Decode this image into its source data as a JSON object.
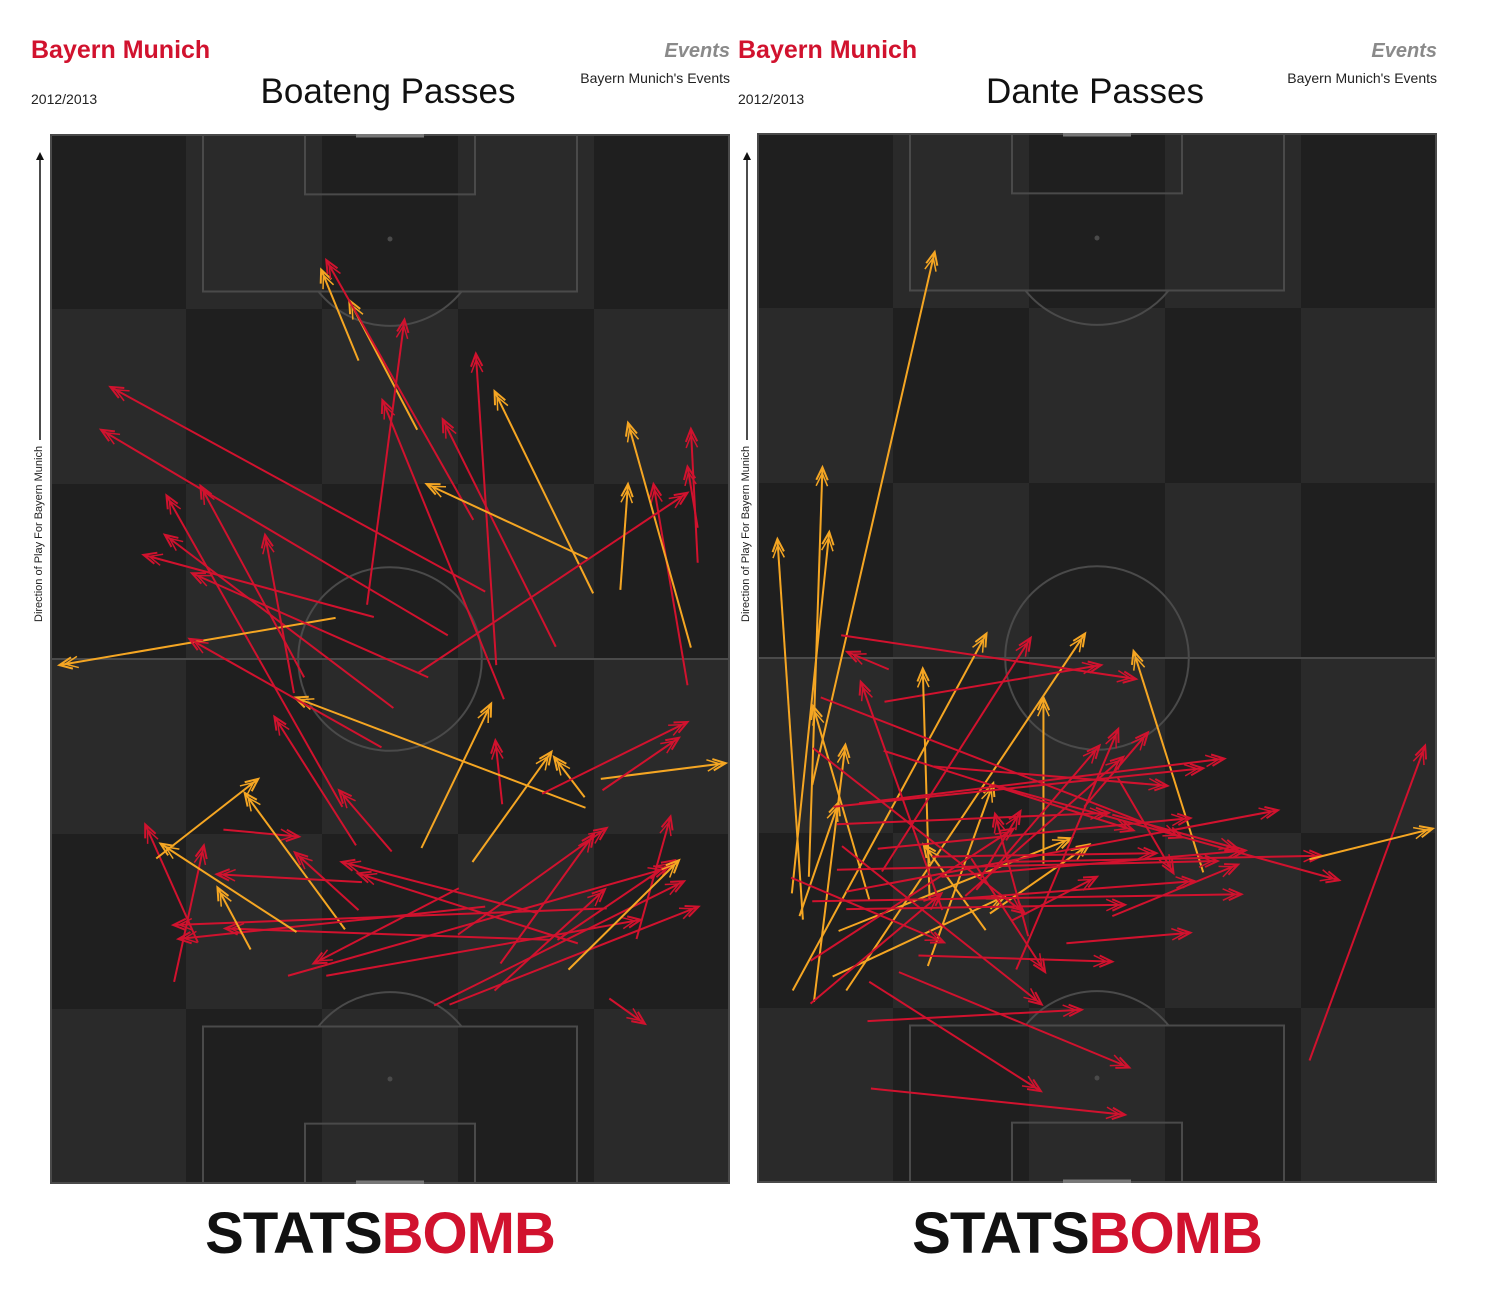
{
  "colors": {
    "pitch_dark": "#1f1f1f",
    "pitch_light": "#2a2a2a",
    "pitch_lines": "#4a4a4a",
    "red": "#d1122e",
    "orange": "#f5a623"
  },
  "brand": {
    "dark": "STATS",
    "red": "BOMB"
  },
  "panels": [
    {
      "team": "Bayern Munich",
      "season": "2012/2013",
      "title": "Boateng Passes",
      "events_label": "Events",
      "events_sub": "Bayern Munich's Events",
      "direction_label": "Direction of Play For Bayern Munich"
    },
    {
      "team": "Bayern Munich",
      "season": "2012/2013",
      "title": "Dante Passes",
      "events_label": "Events",
      "events_sub": "Bayern Munich's Events",
      "direction_label": "Direction of Play For Bayern Munich"
    }
  ],
  "chart_data": [
    {
      "type": "pass-map",
      "title": "Boateng Passes",
      "units": "pitch yards: x = width (0-80), y = length (0-120); attacking toward y=120",
      "passes": [
        {
          "sx": 51.2,
          "sy": 67.7,
          "ex": 7.1,
          "ey": 91.1,
          "color": "red"
        },
        {
          "sx": 46.8,
          "sy": 62.7,
          "ex": 6.0,
          "ey": 86.2,
          "color": "red"
        },
        {
          "sx": 38.1,
          "sy": 64.8,
          "ex": 11.0,
          "ey": 71.9,
          "color": "red"
        },
        {
          "sx": 40.4,
          "sy": 54.4,
          "ex": 13.5,
          "ey": 74.2,
          "color": "red"
        },
        {
          "sx": 34.4,
          "sy": 43.1,
          "ex": 13.7,
          "ey": 78.7,
          "color": "red"
        },
        {
          "sx": 33.6,
          "sy": 64.7,
          "ex": 1.1,
          "ey": 59.3,
          "color": "orange"
        },
        {
          "sx": 28.7,
          "sy": 56.1,
          "ex": 25.3,
          "ey": 74.2,
          "color": "red"
        },
        {
          "sx": 29.9,
          "sy": 57.9,
          "ex": 17.7,
          "ey": 79.8,
          "color": "red"
        },
        {
          "sx": 36.3,
          "sy": 94.1,
          "ex": 31.9,
          "ey": 104.5,
          "color": "orange"
        },
        {
          "sx": 43.2,
          "sy": 86.2,
          "ex": 35.2,
          "ey": 101.0,
          "color": "orange"
        },
        {
          "sx": 49.8,
          "sy": 75.9,
          "ex": 32.5,
          "ey": 105.6,
          "color": "red"
        },
        {
          "sx": 37.3,
          "sy": 66.2,
          "ex": 41.7,
          "ey": 98.8,
          "color": "red"
        },
        {
          "sx": 52.5,
          "sy": 59.3,
          "ex": 50.1,
          "ey": 94.9,
          "color": "red"
        },
        {
          "sx": 53.4,
          "sy": 55.4,
          "ex": 39.1,
          "ey": 89.6,
          "color": "red"
        },
        {
          "sx": 59.5,
          "sy": 61.4,
          "ex": 46.2,
          "ey": 87.4,
          "color": "red"
        },
        {
          "sx": 63.9,
          "sy": 67.5,
          "ex": 52.3,
          "ey": 90.6,
          "color": "orange"
        },
        {
          "sx": 63.4,
          "sy": 71.4,
          "ex": 44.3,
          "ey": 80.0,
          "color": "orange"
        },
        {
          "sx": 75.0,
          "sy": 57.0,
          "ex": 71.0,
          "ey": 80.0,
          "color": "red"
        },
        {
          "sx": 75.4,
          "sy": 61.3,
          "ex": 68.0,
          "ey": 87.0,
          "color": "orange"
        },
        {
          "sx": 76.2,
          "sy": 75.0,
          "ex": 75.0,
          "ey": 82.0,
          "color": "red"
        },
        {
          "sx": 76.2,
          "sy": 71.0,
          "ex": 75.4,
          "ey": 86.3,
          "color": "red"
        },
        {
          "sx": 43.3,
          "sy": 58.4,
          "ex": 75.0,
          "ey": 79.0,
          "color": "red"
        },
        {
          "sx": 67.1,
          "sy": 67.9,
          "ex": 68.0,
          "ey": 80.0,
          "color": "orange"
        },
        {
          "sx": 53.2,
          "sy": 43.4,
          "ex": 52.4,
          "ey": 50.7,
          "color": "red"
        },
        {
          "sx": 36.0,
          "sy": 38.7,
          "ex": 26.4,
          "ey": 53.4,
          "color": "red"
        },
        {
          "sx": 40.2,
          "sy": 38.0,
          "ex": 34.0,
          "ey": 45.0,
          "color": "red"
        },
        {
          "sx": 20.4,
          "sy": 40.5,
          "ex": 29.3,
          "ey": 39.7,
          "color": "red"
        },
        {
          "sx": 44.5,
          "sy": 57.9,
          "ex": 16.7,
          "ey": 69.8,
          "color": "red"
        },
        {
          "sx": 63.0,
          "sy": 43.0,
          "ex": 28.8,
          "ey": 55.6,
          "color": "orange"
        },
        {
          "sx": 39.0,
          "sy": 49.9,
          "ex": 16.4,
          "ey": 62.3,
          "color": "red"
        },
        {
          "sx": 43.7,
          "sy": 38.4,
          "ex": 51.9,
          "ey": 54.9,
          "color": "orange"
        },
        {
          "sx": 49.7,
          "sy": 36.8,
          "ex": 59.0,
          "ey": 49.4,
          "color": "orange"
        },
        {
          "sx": 34.7,
          "sy": 29.1,
          "ex": 22.9,
          "ey": 44.7,
          "color": "orange"
        },
        {
          "sx": 14.6,
          "sy": 23.1,
          "ex": 18.1,
          "ey": 38.7,
          "color": "red"
        },
        {
          "sx": 36.7,
          "sy": 34.5,
          "ex": 19.6,
          "ey": 35.4,
          "color": "red"
        },
        {
          "sx": 28.0,
          "sy": 23.8,
          "ex": 72.6,
          "ey": 36.1,
          "color": "red"
        },
        {
          "sx": 32.5,
          "sy": 23.8,
          "ex": 69.5,
          "ey": 30.2,
          "color": "red"
        },
        {
          "sx": 45.2,
          "sy": 20.4,
          "ex": 74.6,
          "ey": 34.6,
          "color": "red"
        },
        {
          "sx": 52.3,
          "sy": 22.1,
          "ex": 65.3,
          "ey": 33.7,
          "color": "red"
        },
        {
          "sx": 47.0,
          "sy": 20.5,
          "ex": 76.3,
          "ey": 31.7,
          "color": "red"
        },
        {
          "sx": 59.7,
          "sy": 27.9,
          "ex": 73.5,
          "ey": 37.0,
          "color": "red"
        },
        {
          "sx": 69.0,
          "sy": 28.0,
          "ex": 73.0,
          "ey": 42.0,
          "color": "red"
        },
        {
          "sx": 57.2,
          "sy": 31.0,
          "ex": 34.3,
          "ey": 36.8,
          "color": "red"
        },
        {
          "sx": 62.1,
          "sy": 27.5,
          "ex": 36.2,
          "ey": 35.5,
          "color": "red"
        },
        {
          "sx": 58.9,
          "sy": 27.9,
          "ex": 20.6,
          "ey": 29.2,
          "color": "red"
        },
        {
          "sx": 65.5,
          "sy": 31.5,
          "ex": 14.5,
          "ey": 29.6,
          "color": "red"
        },
        {
          "sx": 36.3,
          "sy": 31.3,
          "ex": 28.8,
          "ey": 37.9,
          "color": "red"
        },
        {
          "sx": 51.2,
          "sy": 31.7,
          "ex": 15.1,
          "ey": 28.0,
          "color": "red"
        },
        {
          "sx": 23.6,
          "sy": 26.8,
          "ex": 19.7,
          "ey": 33.9,
          "color": "orange"
        },
        {
          "sx": 29.0,
          "sy": 28.8,
          "ex": 13.0,
          "ey": 38.9,
          "color": "orange"
        },
        {
          "sx": 48.1,
          "sy": 33.8,
          "ex": 31.0,
          "ey": 25.2,
          "color": "red"
        },
        {
          "sx": 53.0,
          "sy": 25.2,
          "ex": 64.0,
          "ey": 40.0,
          "color": "red"
        },
        {
          "sx": 48.0,
          "sy": 28.5,
          "ex": 65.5,
          "ey": 40.7,
          "color": "red"
        },
        {
          "sx": 62.9,
          "sy": 44.2,
          "ex": 59.3,
          "ey": 48.8,
          "color": "orange"
        },
        {
          "sx": 64.8,
          "sy": 46.3,
          "ex": 79.5,
          "ey": 48.1,
          "color": "orange"
        },
        {
          "sx": 57.9,
          "sy": 44.6,
          "ex": 75.0,
          "ey": 52.8,
          "color": "red"
        },
        {
          "sx": 17.4,
          "sy": 27.6,
          "ex": 11.2,
          "ey": 41.1,
          "color": "red"
        },
        {
          "sx": 65.8,
          "sy": 21.2,
          "ex": 70.0,
          "ey": 18.3,
          "color": "red"
        },
        {
          "sx": 12.5,
          "sy": 37.2,
          "ex": 24.5,
          "ey": 46.3,
          "color": "orange"
        },
        {
          "sx": 61.0,
          "sy": 24.5,
          "ex": 74.0,
          "ey": 37.0,
          "color": "orange"
        },
        {
          "sx": 65.0,
          "sy": 45.0,
          "ex": 74.0,
          "ey": 51.0,
          "color": "red"
        }
      ]
    },
    {
      "type": "pass-map",
      "title": "Dante Passes",
      "units": "pitch yards: x = width (0-80), y = length (0-120); attacking toward y=120",
      "passes": [
        {
          "sx": 6.5,
          "sy": 45.5,
          "ex": 20.9,
          "ey": 106.4,
          "color": "orange"
        },
        {
          "sx": 6.1,
          "sy": 35.0,
          "ex": 7.7,
          "ey": 81.8,
          "color": "orange"
        },
        {
          "sx": 4.1,
          "sy": 33.1,
          "ex": 8.5,
          "ey": 74.4,
          "color": "orange"
        },
        {
          "sx": 5.4,
          "sy": 30.1,
          "ex": 2.4,
          "ey": 73.6,
          "color": "orange"
        },
        {
          "sx": 6.7,
          "sy": 20.7,
          "ex": 10.4,
          "ey": 50.1,
          "color": "orange"
        },
        {
          "sx": 5.0,
          "sy": 30.5,
          "ex": 9.6,
          "ey": 43.5,
          "color": "orange"
        },
        {
          "sx": 4.2,
          "sy": 22.0,
          "ex": 27.0,
          "ey": 62.8,
          "color": "orange"
        },
        {
          "sx": 10.5,
          "sy": 22.0,
          "ex": 38.6,
          "ey": 62.8,
          "color": "orange"
        },
        {
          "sx": 13.2,
          "sy": 32.4,
          "ex": 6.6,
          "ey": 54.5,
          "color": "orange"
        },
        {
          "sx": 9.6,
          "sy": 28.8,
          "ex": 37.0,
          "ey": 39.4,
          "color": "orange"
        },
        {
          "sx": 26.9,
          "sy": 28.9,
          "ex": 19.6,
          "ey": 38.7,
          "color": "orange"
        },
        {
          "sx": 30.5,
          "sy": 24.4,
          "ex": 42.5,
          "ey": 51.9,
          "color": "red"
        },
        {
          "sx": 9.9,
          "sy": 62.6,
          "ex": 44.6,
          "ey": 57.6,
          "color": "red"
        },
        {
          "sx": 15.0,
          "sy": 55.0,
          "ex": 40.5,
          "ey": 59.2,
          "color": "red"
        },
        {
          "sx": 15.5,
          "sy": 58.7,
          "ex": 10.6,
          "ey": 60.7,
          "color": "red"
        },
        {
          "sx": 20.3,
          "sy": 32.5,
          "ex": 19.5,
          "ey": 58.8,
          "color": "orange"
        },
        {
          "sx": 14.7,
          "sy": 35.6,
          "ex": 32.2,
          "ey": 62.3,
          "color": "red"
        },
        {
          "sx": 20.1,
          "sy": 24.8,
          "ex": 27.8,
          "ey": 45.7,
          "color": "orange"
        },
        {
          "sx": 27.4,
          "sy": 30.8,
          "ex": 39.1,
          "ey": 38.7,
          "color": "orange"
        },
        {
          "sx": 8.9,
          "sy": 23.6,
          "ex": 29.2,
          "ey": 32.8,
          "color": "orange"
        },
        {
          "sx": 33.7,
          "sy": 36.5,
          "ex": 33.7,
          "ey": 55.5,
          "color": "orange"
        },
        {
          "sx": 52.5,
          "sy": 35.5,
          "ex": 44.3,
          "ey": 60.8,
          "color": "orange"
        },
        {
          "sx": 24.5,
          "sy": 32.8,
          "ex": 43.1,
          "ey": 48.7,
          "color": "red"
        },
        {
          "sx": 14.2,
          "sy": 38.2,
          "ex": 51.0,
          "ey": 41.7,
          "color": "red"
        },
        {
          "sx": 7.5,
          "sy": 55.5,
          "ex": 50.0,
          "ey": 39.5,
          "color": "red"
        },
        {
          "sx": 14.9,
          "sy": 49.4,
          "ex": 44.3,
          "ey": 40.3,
          "color": "red"
        },
        {
          "sx": 27.8,
          "sy": 45.5,
          "ex": 68.5,
          "ey": 34.6,
          "color": "red"
        },
        {
          "sx": 9.0,
          "sy": 43.0,
          "ex": 52.5,
          "ey": 47.4,
          "color": "red"
        },
        {
          "sx": 20.8,
          "sy": 47.6,
          "ex": 48.3,
          "ey": 45.4,
          "color": "red"
        },
        {
          "sx": 42.4,
          "sy": 46.4,
          "ex": 49.0,
          "ey": 35.4,
          "color": "red"
        },
        {
          "sx": 10.5,
          "sy": 33.3,
          "ex": 61.3,
          "ey": 42.6,
          "color": "red"
        },
        {
          "sx": 20.6,
          "sy": 37.3,
          "ex": 47.0,
          "ey": 37.7,
          "color": "red"
        },
        {
          "sx": 41.8,
          "sy": 42.1,
          "ex": 56.6,
          "ey": 38.2,
          "color": "red"
        },
        {
          "sx": 9.4,
          "sy": 41.0,
          "ex": 41.4,
          "ey": 42.3,
          "color": "red"
        },
        {
          "sx": 29.4,
          "sy": 36.7,
          "ex": 66.5,
          "ey": 37.4,
          "color": "red"
        },
        {
          "sx": 21.7,
          "sy": 35.0,
          "ex": 57.5,
          "ey": 38.0,
          "color": "red"
        },
        {
          "sx": 9.4,
          "sy": 35.8,
          "ex": 54.2,
          "ey": 36.8,
          "color": "red"
        },
        {
          "sx": 10.5,
          "sy": 31.3,
          "ex": 43.3,
          "ey": 31.8,
          "color": "red"
        },
        {
          "sx": 6.5,
          "sy": 32.2,
          "ex": 57.0,
          "ey": 33.0,
          "color": "red"
        },
        {
          "sx": 24.0,
          "sy": 32.5,
          "ex": 51.5,
          "ey": 34.5,
          "color": "red"
        },
        {
          "sx": 6.6,
          "sy": 49.7,
          "ex": 31.5,
          "ey": 30.8,
          "color": "red"
        },
        {
          "sx": 4.0,
          "sy": 34.9,
          "ex": 22.0,
          "ey": 27.5,
          "color": "red"
        },
        {
          "sx": 19.0,
          "sy": 26.0,
          "ex": 41.8,
          "ey": 25.3,
          "color": "red"
        },
        {
          "sx": 10.0,
          "sy": 38.5,
          "ex": 33.5,
          "ey": 20.4,
          "color": "red"
        },
        {
          "sx": 16.7,
          "sy": 24.1,
          "ex": 43.8,
          "ey": 13.2,
          "color": "red"
        },
        {
          "sx": 13.2,
          "sy": 23.0,
          "ex": 33.4,
          "ey": 10.5,
          "color": "red"
        },
        {
          "sx": 13.4,
          "sy": 10.8,
          "ex": 43.3,
          "ey": 7.8,
          "color": "red"
        },
        {
          "sx": 25.2,
          "sy": 37.1,
          "ex": 33.9,
          "ey": 24.1,
          "color": "red"
        },
        {
          "sx": 6.3,
          "sy": 25.4,
          "ex": 30.2,
          "ey": 40.5,
          "color": "red"
        },
        {
          "sx": 36.4,
          "sy": 27.4,
          "ex": 51.0,
          "ey": 28.6,
          "color": "red"
        },
        {
          "sx": 41.8,
          "sy": 30.5,
          "ex": 56.6,
          "ey": 36.4,
          "color": "red"
        },
        {
          "sx": 6.3,
          "sy": 20.5,
          "ex": 21.7,
          "ey": 33.1,
          "color": "red"
        },
        {
          "sx": 26.2,
          "sy": 34.7,
          "ex": 31.0,
          "ey": 42.5,
          "color": "red"
        },
        {
          "sx": 21.8,
          "sy": 31.2,
          "ex": 12.2,
          "ey": 57.3,
          "color": "red"
        },
        {
          "sx": 31.9,
          "sy": 28.2,
          "ex": 28.0,
          "ey": 42.2,
          "color": "red"
        },
        {
          "sx": 30.0,
          "sy": 30.0,
          "ex": 40.0,
          "ey": 35.0,
          "color": "red"
        },
        {
          "sx": 13.0,
          "sy": 18.5,
          "ex": 38.2,
          "ey": 19.8,
          "color": "red"
        },
        {
          "sx": 38.5,
          "sy": 43.0,
          "ex": 46.0,
          "ey": 51.5,
          "color": "red"
        },
        {
          "sx": 65.0,
          "sy": 14.0,
          "ex": 78.6,
          "ey": 50.0,
          "color": "red"
        },
        {
          "sx": 65.0,
          "sy": 37.0,
          "ex": 79.5,
          "ey": 40.5,
          "color": "orange"
        },
        {
          "sx": 25.8,
          "sy": 33.5,
          "ex": 40.3,
          "ey": 50.0,
          "color": "red"
        },
        {
          "sx": 12.0,
          "sy": 43.4,
          "ex": 55.0,
          "ey": 48.5,
          "color": "red"
        }
      ]
    }
  ]
}
